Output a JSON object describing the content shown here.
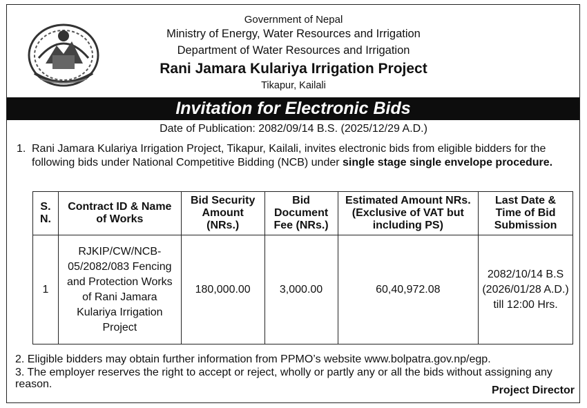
{
  "header": {
    "line1": "Government of Nepal",
    "line2": "Ministry of Energy, Water Resources and Irrigation",
    "line3": "Department of Water Resources and Irrigation",
    "line4": "Rani Jamara Kulariya Irrigation Project",
    "line5": "Tikapur, Kailali",
    "emblem_icon": "nepal-government-emblem"
  },
  "banner": {
    "title": "Invitation for Electronic Bids"
  },
  "publication": {
    "date_text": "Date of Publication: 2082/09/14 B.S. (2025/12/29 A.D.)"
  },
  "para1": {
    "number": "1.",
    "text": "Rani Jamara Kulariya Irrigation Project, Tikapur, Kailali, invites electronic bids from eligible bidders for the following bids under National Competitive Bidding (NCB) under ",
    "bold_text": "single stage single envelope procedure."
  },
  "table": {
    "headers": [
      "S. N.",
      "Contract ID & Name of Works",
      "Bid Security Amount (NRs.)",
      "Bid Document Fee (NRs.)",
      "Estimated Amount NRs. (Exclusive of VAT but including PS)",
      "Last Date & Time of Bid Submission"
    ],
    "rows": [
      {
        "sn": "1",
        "contract": "RJKIP/CW/NCB-05/2082/083 Fencing and Protection Works of Rani Jamara Kulariya Irrigation Project",
        "bid_security": "180,000.00",
        "doc_fee": "3,000.00",
        "estimated": "60,40,972.08",
        "last_date": "2082/10/14 B.S (2026/01/28 A.D.) till 12:00 Hrs."
      }
    ]
  },
  "para2": {
    "text": "2. Eligible bidders may obtain further information from PPMO’s website www.bolpatra.gov.np/egp."
  },
  "para3": {
    "text": "3. The employer reserves the right to accept or reject, wholly or partly any or all the bids without assigning any reason."
  },
  "signer": {
    "text": "Project Director"
  }
}
